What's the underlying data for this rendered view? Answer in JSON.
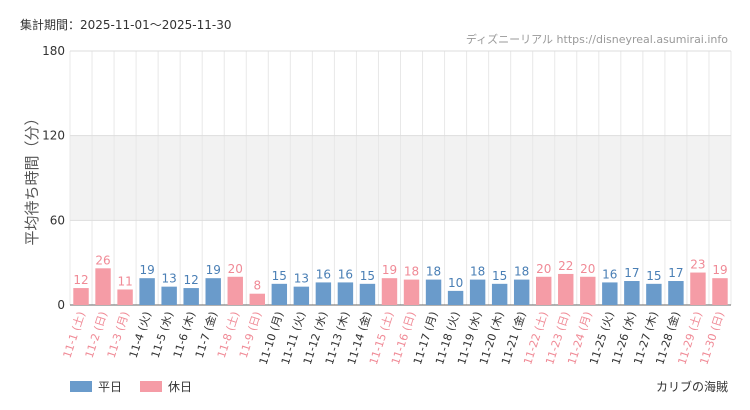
{
  "period_text": "集計期間：2025-11-01〜2025-11-30",
  "source_text": "ディズニーリアル https://disneyreal.asumirai.info",
  "attraction": "カリブの海賊",
  "legend": {
    "weekday": "平日",
    "holiday": "休日"
  },
  "colors": {
    "weekday": "#6a9bcb",
    "holiday": "#f59ca6",
    "weekday_text": "#4a7fb5",
    "holiday_text": "#f08a96"
  },
  "chart_data": {
    "type": "bar",
    "ylabel": "平均待ち時間（分）",
    "ylim": [
      0,
      180
    ],
    "yticks": [
      0,
      60,
      120,
      180
    ],
    "categories": [
      "11-1 (土)",
      "11-2 (日)",
      "11-3 (月)",
      "11-4 (火)",
      "11-5 (水)",
      "11-6 (木)",
      "11-7 (金)",
      "11-8 (土)",
      "11-9 (日)",
      "11-10 (月)",
      "11-11 (火)",
      "11-12 (水)",
      "11-13 (木)",
      "11-14 (金)",
      "11-15 (土)",
      "11-16 (日)",
      "11-17 (月)",
      "11-18 (火)",
      "11-19 (水)",
      "11-20 (木)",
      "11-21 (金)",
      "11-22 (土)",
      "11-23 (日)",
      "11-24 (月)",
      "11-25 (火)",
      "11-26 (水)",
      "11-27 (木)",
      "11-28 (金)",
      "11-29 (土)",
      "11-30 (日)"
    ],
    "values": [
      12,
      26,
      11,
      19,
      13,
      12,
      19,
      20,
      8,
      15,
      13,
      16,
      16,
      15,
      19,
      18,
      18,
      10,
      18,
      15,
      18,
      20,
      22,
      20,
      16,
      17,
      15,
      17,
      23,
      19
    ],
    "holiday": [
      true,
      true,
      true,
      false,
      false,
      false,
      false,
      true,
      true,
      false,
      false,
      false,
      false,
      false,
      true,
      true,
      false,
      false,
      false,
      false,
      false,
      true,
      true,
      true,
      false,
      false,
      false,
      false,
      true,
      true
    ]
  }
}
